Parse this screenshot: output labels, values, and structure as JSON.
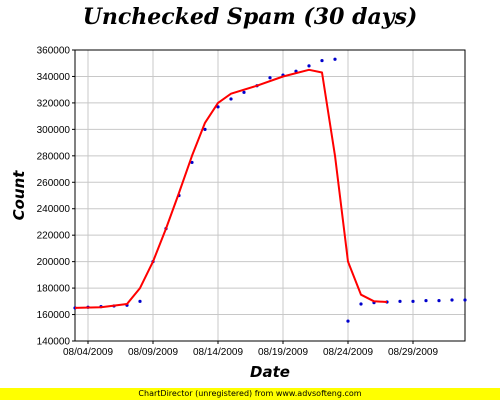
{
  "chart_data": {
    "type": "scatter",
    "title": "Unchecked Spam (30 days)",
    "xlabel": "Date",
    "ylabel": "Count",
    "x_range": [
      "2009-08-03",
      "2009-09-02"
    ],
    "ylim": [
      140000,
      360000
    ],
    "y_ticks": [
      140000,
      160000,
      180000,
      200000,
      220000,
      240000,
      260000,
      280000,
      300000,
      320000,
      340000,
      360000
    ],
    "x_ticks": [
      {
        "date": "2009-08-04",
        "label": "08/04/2009"
      },
      {
        "date": "2009-08-09",
        "label": "08/09/2009"
      },
      {
        "date": "2009-08-14",
        "label": "08/14/2009"
      },
      {
        "date": "2009-08-19",
        "label": "08/19/2009"
      },
      {
        "date": "2009-08-24",
        "label": "08/24/2009"
      },
      {
        "date": "2009-08-29",
        "label": "08/29/2009"
      }
    ],
    "grid": true,
    "legend": "none",
    "series": [
      {
        "kind": "points",
        "color": "#0000cc",
        "points": [
          [
            "2009-08-03",
            165000
          ],
          [
            "2009-08-04",
            165500
          ],
          [
            "2009-08-05",
            166000
          ],
          [
            "2009-08-06",
            166500
          ],
          [
            "2009-08-07",
            167000
          ],
          [
            "2009-08-08",
            170000
          ],
          [
            "2009-08-09",
            200000
          ],
          [
            "2009-08-10",
            225000
          ],
          [
            "2009-08-11",
            250000
          ],
          [
            "2009-08-12",
            275000
          ],
          [
            "2009-08-13",
            300000
          ],
          [
            "2009-08-14",
            317000
          ],
          [
            "2009-08-15",
            323000
          ],
          [
            "2009-08-16",
            328000
          ],
          [
            "2009-08-17",
            333000
          ],
          [
            "2009-08-18",
            339000
          ],
          [
            "2009-08-19",
            341000
          ],
          [
            "2009-08-20",
            344000
          ],
          [
            "2009-08-21",
            348000
          ],
          [
            "2009-08-22",
            352000
          ],
          [
            "2009-08-23",
            353000
          ],
          [
            "2009-08-24",
            155000
          ],
          [
            "2009-08-25",
            168000
          ],
          [
            "2009-08-26",
            169000
          ],
          [
            "2009-08-27",
            169500
          ],
          [
            "2009-08-28",
            170000
          ],
          [
            "2009-08-29",
            170000
          ],
          [
            "2009-08-30",
            170500
          ],
          [
            "2009-08-31",
            170500
          ],
          [
            "2009-09-01",
            171000
          ],
          [
            "2009-09-02",
            171000
          ]
        ]
      },
      {
        "kind": "fit-curve",
        "color": "#ff0000",
        "points": [
          [
            "2009-08-03",
            165000
          ],
          [
            "2009-08-05",
            165500
          ],
          [
            "2009-08-07",
            168000
          ],
          [
            "2009-08-08",
            180000
          ],
          [
            "2009-08-09",
            200000
          ],
          [
            "2009-08-10",
            225000
          ],
          [
            "2009-08-11",
            252000
          ],
          [
            "2009-08-12",
            280000
          ],
          [
            "2009-08-13",
            305000
          ],
          [
            "2009-08-14",
            320000
          ],
          [
            "2009-08-15",
            327000
          ],
          [
            "2009-08-17",
            333000
          ],
          [
            "2009-08-19",
            340000
          ],
          [
            "2009-08-21",
            345000
          ],
          [
            "2009-08-22",
            343000
          ],
          [
            "2009-08-23",
            280000
          ],
          [
            "2009-08-24",
            200000
          ],
          [
            "2009-08-25",
            175000
          ],
          [
            "2009-08-26",
            170000
          ],
          [
            "2009-08-27",
            169500
          ]
        ]
      }
    ]
  },
  "footer": "ChartDirector (unregistered) from www.advsofteng.com"
}
